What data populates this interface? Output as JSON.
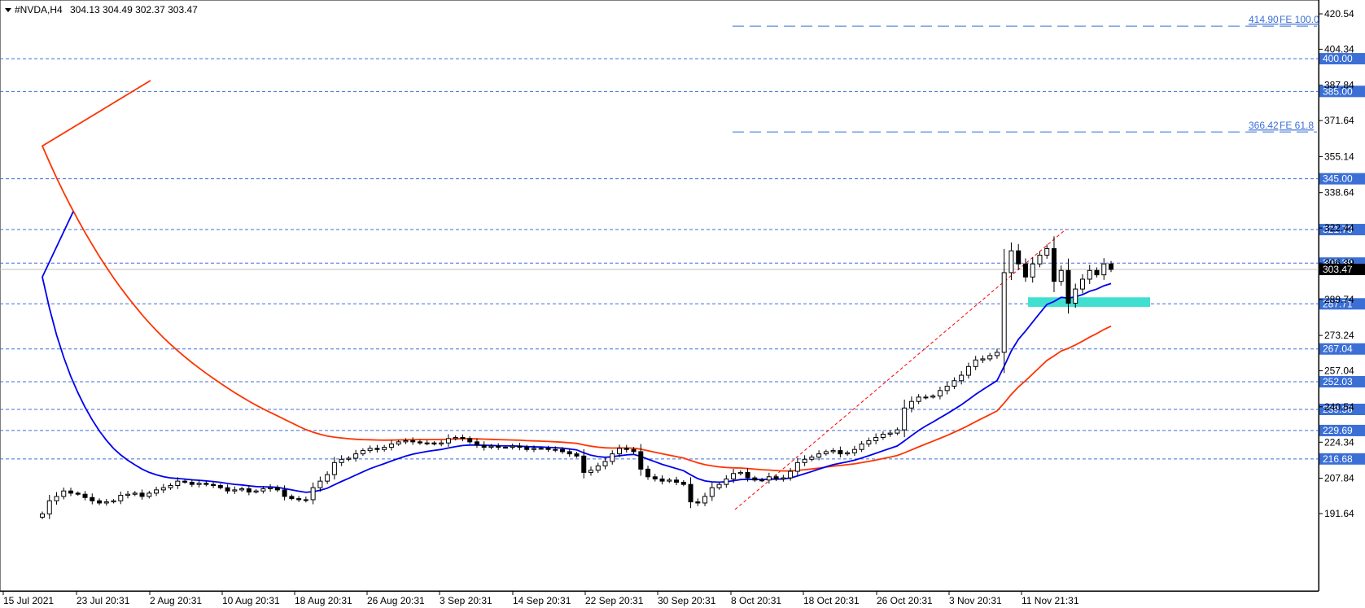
{
  "header": {
    "symbol": "#NVDA,H4",
    "quote": "304.13 304.49 302.37 303.47"
  },
  "colors": {
    "ma_fast": "#0000ee",
    "ma_slow": "#ff3300",
    "level_line": "#3b6fd6",
    "fib_text": "#3b6fd6",
    "zone": "#40e0d0",
    "trend": "#ff0000",
    "current_price_bg": "#000000"
  },
  "chart_data": {
    "type": "candlestick",
    "y_range": [
      185.6,
      426.0
    ],
    "y_ticks": [
      "420.54",
      "404.34",
      "387.84",
      "371.64",
      "355.14",
      "338.64",
      "322.44",
      "306.39",
      "289.74",
      "273.24",
      "257.04",
      "240.54",
      "224.34",
      "207.84",
      "191.64"
    ],
    "x_tick_labels": [
      "15 Jul 2021",
      "23 Jul 20:31",
      "2 Aug 20:31",
      "10 Aug 20:31",
      "18 Aug 20:31",
      "26 Aug 20:31",
      "3 Sep 20:31",
      "14 Sep 20:31",
      "22 Sep 20:31",
      "30 Sep 20:31",
      "8 Oct 20:31",
      "18 Oct 20:31",
      "26 Oct 20:31",
      "3 Nov 20:31",
      "11 Nov 21:31"
    ],
    "levels": [
      {
        "price": 400.0,
        "label": "400.00"
      },
      {
        "price": 385.0,
        "label": "385.00"
      },
      {
        "price": 345.0,
        "label": "345.00"
      },
      {
        "price": 321.73,
        "label": "321.73"
      },
      {
        "price": 306.39,
        "label": "306.39"
      },
      {
        "price": 287.71,
        "label": "287.71"
      },
      {
        "price": 267.04,
        "label": "267.04"
      },
      {
        "price": 252.03,
        "label": "252.03"
      },
      {
        "price": 239.36,
        "label": "239.36"
      },
      {
        "price": 229.69,
        "label": "229.69"
      },
      {
        "price": 216.68,
        "label": "216.68"
      }
    ],
    "fib_levels": [
      {
        "price": 414.9,
        "label": "414.90",
        "tag": "FE 100.0"
      },
      {
        "price": 366.42,
        "label": "366.42",
        "tag": "FE 61.8"
      }
    ],
    "current_price": {
      "price": 303.47,
      "label": "303.47"
    },
    "zone": {
      "top": 290.7,
      "bottom": 286.3
    },
    "trend_line": {
      "from_date": "30 Sep 20:31",
      "from_price": 193.5,
      "to_date": "5 Nov",
      "to_price": 322.0
    },
    "closes": [
      191.5,
      197.5,
      199.5,
      202.0,
      201.0,
      200.5,
      199.0,
      197.5,
      196.5,
      197.0,
      197.5,
      200.0,
      200.5,
      201.0,
      199.5,
      201.0,
      202.5,
      203.5,
      204.5,
      206.5,
      206.0,
      205.0,
      205.5,
      205.0,
      204.5,
      203.5,
      202.0,
      202.5,
      203.0,
      201.5,
      202.0,
      203.0,
      203.5,
      202.5,
      199.5,
      198.5,
      198.0,
      198.0,
      203.5,
      206.5,
      209.5,
      215.0,
      216.5,
      217.0,
      219.0,
      220.5,
      221.5,
      221.0,
      222.0,
      223.5,
      224.5,
      225.0,
      224.5,
      224.0,
      224.0,
      223.5,
      224.0,
      226.0,
      226.5,
      226.0,
      224.5,
      223.0,
      222.0,
      222.5,
      222.0,
      222.0,
      222.5,
      222.0,
      221.0,
      221.5,
      221.5,
      221.0,
      221.0,
      220.0,
      219.0,
      218.0,
      210.5,
      211.5,
      213.5,
      215.5,
      219.0,
      221.5,
      221.0,
      220.0,
      212.0,
      208.5,
      207.5,
      206.5,
      207.0,
      206.0,
      205.0,
      197.0,
      196.5,
      199.5,
      203.5,
      205.0,
      207.5,
      210.0,
      210.5,
      208.0,
      207.0,
      207.0,
      208.5,
      207.5,
      208.0,
      211.0,
      215.0,
      216.5,
      217.5,
      219.0,
      220.0,
      220.5,
      219.0,
      219.5,
      221.0,
      223.5,
      225.0,
      226.5,
      228.0,
      228.5,
      230.0,
      240.0,
      243.0,
      245.0,
      245.0,
      245.5,
      248.0,
      250.0,
      252.5,
      255.0,
      259.0,
      262.0,
      262.5,
      264.0,
      265.5,
      302.0,
      312.0,
      306.0,
      300.0,
      306.0,
      310.0,
      313.0,
      298.0,
      303.0,
      288.0,
      294.5,
      299.0,
      303.0,
      301.0,
      306.0,
      303.47
    ],
    "series": [
      {
        "name": "MA fast",
        "color": "#0000ee"
      },
      {
        "name": "MA slow",
        "color": "#ff3300"
      }
    ]
  }
}
